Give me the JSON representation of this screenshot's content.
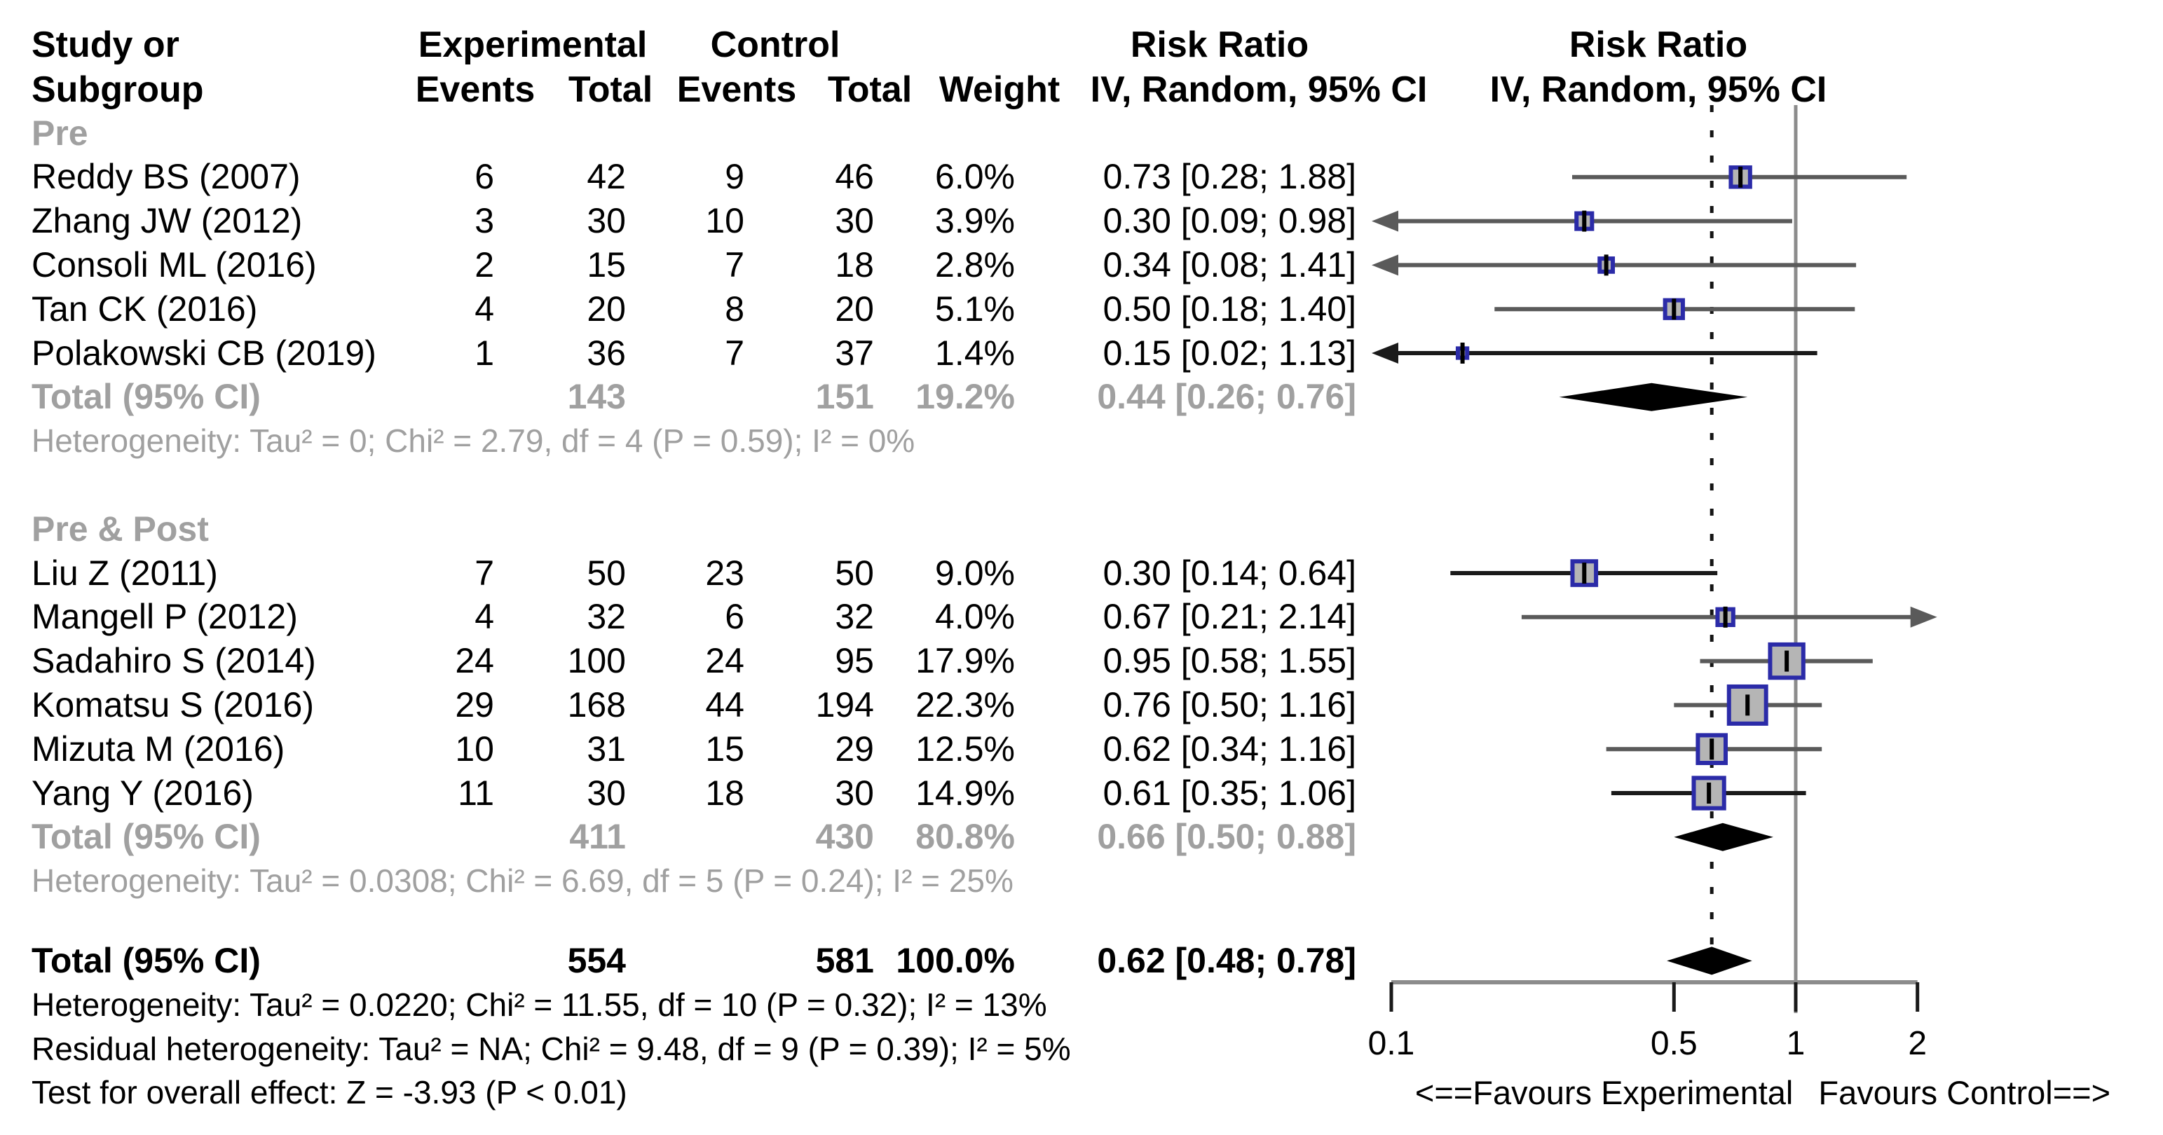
{
  "header": {
    "study_line1": "Study or",
    "study_line2": "Subgroup",
    "experimental": "Experimental",
    "control": "Control",
    "events": "Events",
    "total": "Total",
    "events2": "Events",
    "total2": "Total",
    "weight": "Weight",
    "effect_line1": "Risk Ratio",
    "effect_line2": "IV, Random, 95% CI",
    "plot_line1": "Risk Ratio",
    "plot_line2": "IV, Random, 95% CI"
  },
  "axis": {
    "tick_labels": [
      "0.1",
      "0.5",
      "1",
      "2"
    ],
    "favours_left": "<==Favours Experimental",
    "favours_right": "Favours Control==>"
  },
  "colors": {
    "square_fill": "#b5b5b5",
    "square_border": "#2b2ba8",
    "ci_gray": "#5a5a5a",
    "ci_black": "#1a1a1a",
    "ref_line": "#8c8c8c",
    "axis_line": "#8c8c8c",
    "tick": "#1a1a1a",
    "dotted_line": "#141414",
    "diamond": "#000000",
    "muted_text": "#a0a0a0"
  },
  "chart_data": {
    "type": "forest",
    "effect_measure": "Risk Ratio",
    "model": "IV, Random, 95% CI",
    "x_scale": "log10",
    "x_ticks": [
      0.1,
      0.5,
      1,
      2
    ],
    "x_range": [
      0.1,
      2
    ],
    "reference_line": 1,
    "overall_effect_line": 0.62,
    "rows": [
      {
        "type": "group",
        "label": "Pre"
      },
      {
        "type": "study",
        "label": "Reddy BS (2007)",
        "ee": "6",
        "te": "42",
        "ec": "9",
        "tc": "46",
        "w": "6.0%",
        "rr": "0.73 [0.28; 1.88]",
        "est": 0.73,
        "lo": 0.28,
        "hi": 1.88,
        "weight": 6.0,
        "ci": "gray"
      },
      {
        "type": "study",
        "label": "Zhang JW (2012)",
        "ee": "3",
        "te": "30",
        "ec": "10",
        "tc": "30",
        "w": "3.9%",
        "rr": "0.30 [0.09; 0.98]",
        "est": 0.3,
        "lo": 0.09,
        "hi": 0.98,
        "weight": 3.9,
        "ci": "gray"
      },
      {
        "type": "study",
        "label": "Consoli ML (2016)",
        "ee": "2",
        "te": "15",
        "ec": "7",
        "tc": "18",
        "w": "2.8%",
        "rr": "0.34 [0.08; 1.41]",
        "est": 0.34,
        "lo": 0.08,
        "hi": 1.41,
        "weight": 2.8,
        "ci": "gray"
      },
      {
        "type": "study",
        "label": "Tan CK (2016)",
        "ee": "4",
        "te": "20",
        "ec": "8",
        "tc": "20",
        "w": "5.1%",
        "rr": "0.50 [0.18; 1.40]",
        "est": 0.5,
        "lo": 0.18,
        "hi": 1.4,
        "weight": 5.1,
        "ci": "gray"
      },
      {
        "type": "study",
        "label": "Polakowski CB (2019)",
        "ee": "1",
        "te": "36",
        "ec": "7",
        "tc": "37",
        "w": "1.4%",
        "rr": "0.15 [0.02; 1.13]",
        "est": 0.15,
        "lo": 0.02,
        "hi": 1.13,
        "weight": 1.4,
        "ci": "black"
      },
      {
        "type": "subtotal",
        "label": "Total (95% CI)",
        "te": "143",
        "tc": "151",
        "w": "19.2%",
        "rr": "0.44 [0.26; 0.76]",
        "est": 0.44,
        "lo": 0.26,
        "hi": 0.76
      },
      {
        "type": "het",
        "label": "Heterogeneity: Tau² = 0; Chi² = 2.79, df = 4 (P = 0.59); I² = 0%"
      },
      {
        "type": "gap"
      },
      {
        "type": "group",
        "label": "Pre & Post"
      },
      {
        "type": "study",
        "label": "Liu Z (2011)",
        "ee": "7",
        "te": "50",
        "ec": "23",
        "tc": "50",
        "w": "9.0%",
        "rr": "0.30 [0.14; 0.64]",
        "est": 0.3,
        "lo": 0.14,
        "hi": 0.64,
        "weight": 9.0,
        "ci": "black"
      },
      {
        "type": "study",
        "label": "Mangell P (2012)",
        "ee": "4",
        "te": "32",
        "ec": "6",
        "tc": "32",
        "w": "4.0%",
        "rr": "0.67 [0.21; 2.14]",
        "est": 0.67,
        "lo": 0.21,
        "hi": 2.14,
        "weight": 4.0,
        "ci": "gray"
      },
      {
        "type": "study",
        "label": "Sadahiro S (2014)",
        "ee": "24",
        "te": "100",
        "ec": "24",
        "tc": "95",
        "w": "17.9%",
        "rr": "0.95 [0.58; 1.55]",
        "est": 0.95,
        "lo": 0.58,
        "hi": 1.55,
        "weight": 17.9,
        "ci": "gray"
      },
      {
        "type": "study",
        "label": "Komatsu S (2016)",
        "ee": "29",
        "te": "168",
        "ec": "44",
        "tc": "194",
        "w": "22.3%",
        "rr": "0.76 [0.50; 1.16]",
        "est": 0.76,
        "lo": 0.5,
        "hi": 1.16,
        "weight": 22.3,
        "ci": "gray"
      },
      {
        "type": "study",
        "label": "Mizuta M (2016)",
        "ee": "10",
        "te": "31",
        "ec": "15",
        "tc": "29",
        "w": "12.5%",
        "rr": "0.62 [0.34; 1.16]",
        "est": 0.62,
        "lo": 0.34,
        "hi": 1.16,
        "weight": 12.5,
        "ci": "gray"
      },
      {
        "type": "study",
        "label": "Yang Y (2016)",
        "ee": "11",
        "te": "30",
        "ec": "18",
        "tc": "30",
        "w": "14.9%",
        "rr": "0.61 [0.35; 1.06]",
        "est": 0.61,
        "lo": 0.35,
        "hi": 1.06,
        "weight": 14.9,
        "ci": "black"
      },
      {
        "type": "subtotal",
        "label": "Total (95% CI)",
        "te": "411",
        "tc": "430",
        "w": "80.8%",
        "rr": "0.66 [0.50; 0.88]",
        "est": 0.66,
        "lo": 0.5,
        "hi": 0.88
      },
      {
        "type": "het",
        "label": "Heterogeneity: Tau² = 0.0308; Chi² = 6.69, df = 5 (P = 0.24); I² = 25%"
      },
      {
        "type": "gap"
      },
      {
        "type": "total",
        "label": "Total (95% CI)",
        "te": "554",
        "tc": "581",
        "w": "100.0%",
        "rr": "0.62 [0.48; 0.78]",
        "est": 0.62,
        "lo": 0.48,
        "hi": 0.78
      },
      {
        "type": "footnote",
        "label": "Heterogeneity: Tau² = 0.0220; Chi² = 11.55, df = 10 (P = 0.32); I² = 13%"
      },
      {
        "type": "footnote",
        "label": "Residual heterogeneity: Tau² = NA; Chi² = 9.48, df = 9 (P = 0.39); I² = 5%"
      },
      {
        "type": "footnote",
        "label": "Test for overall effect: Z = -3.93 (P < 0.01)"
      }
    ]
  }
}
